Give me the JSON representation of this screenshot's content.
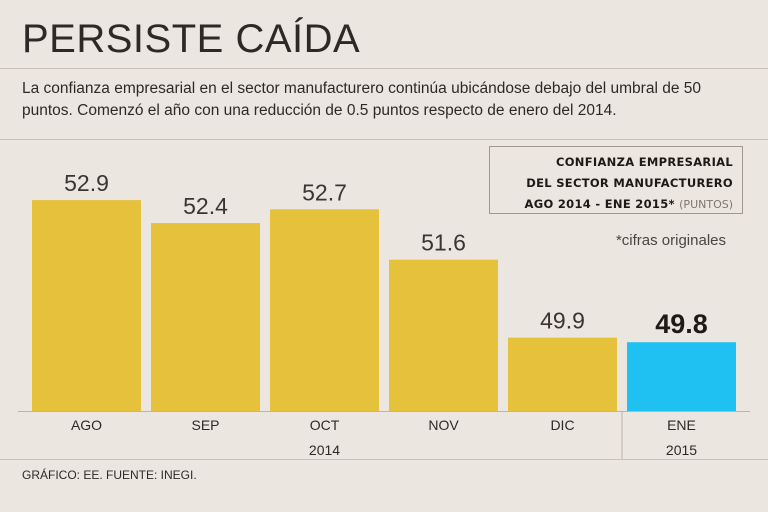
{
  "header": {
    "title": "PERSISTE CAÍDA",
    "subtitle": "La confianza empresarial en el sector manufacturero continúa ubicándose debajo del umbral de 50 puntos. Comenzó el año con una reducción de 0.5 puntos respecto de enero del 2014."
  },
  "legend": {
    "line1": "CONFIANZA EMPRESARIAL",
    "line2": "DEL SECTOR MANUFACTURERO",
    "line3": "AGO 2014 - ENE 2015*",
    "units": "(PUNTOS)"
  },
  "note": "*cifras originales",
  "footer": "GRÁFICO: EE. FUENTE: INEGI.",
  "colors": {
    "bar": "#e6c13b",
    "highlight": "#1ec1f2",
    "background": "#ece6e1"
  },
  "chart_data": {
    "type": "bar",
    "title": "CONFIANZA EMPRESARIAL DEL SECTOR MANUFACTURERO AGO 2014 - ENE 2015*",
    "ylabel": "(PUNTOS)",
    "xlabel": "",
    "categories": [
      "AGO",
      "SEP",
      "OCT",
      "NOV",
      "DIC",
      "ENE"
    ],
    "values": [
      52.9,
      52.4,
      52.7,
      51.6,
      49.9,
      49.8
    ],
    "value_labels": [
      "52.9",
      "52.4",
      "52.7",
      "51.6",
      "49.9",
      "49.8"
    ],
    "highlight_index": 5,
    "year_groups": [
      {
        "label": "2014",
        "from": 0,
        "to": 4
      },
      {
        "label": "2015",
        "from": 5,
        "to": 5
      }
    ],
    "ylim": [
      48.3,
      53.6
    ],
    "grid": false
  }
}
